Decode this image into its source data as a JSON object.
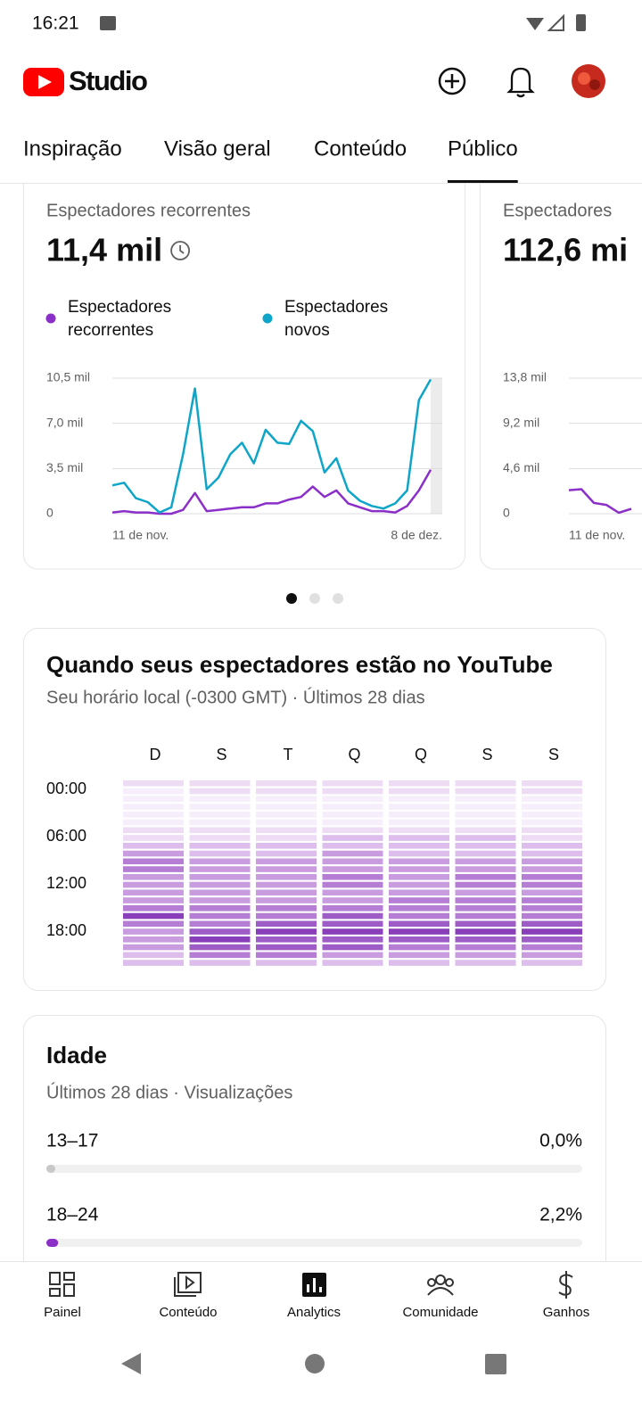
{
  "status_bar": {
    "time": "16:21"
  },
  "header": {
    "app_name": "Studio"
  },
  "tabs": {
    "items": [
      "Inspiração",
      "Visão geral",
      "Conteúdo",
      "Público"
    ],
    "active": 3
  },
  "cards": [
    {
      "title": "Espectadores recorrentes",
      "value": "11,4 mil",
      "chart": {
        "type": "line",
        "categories": [
          "11 de nov.",
          null,
          null,
          null,
          null,
          null,
          null,
          null,
          null,
          null,
          null,
          null,
          null,
          null,
          null,
          null,
          null,
          null,
          null,
          null,
          null,
          null,
          null,
          null,
          null,
          null,
          null,
          "8 de dez."
        ],
        "series": [
          {
            "name": "Espectadores recorrentes",
            "color": "#8b2fc9",
            "values": [
              100,
              200,
              100,
              100,
              0,
              0,
              300,
              1600,
              200,
              300,
              400,
              500,
              500,
              800,
              800,
              1100,
              1300,
              2100,
              1300,
              1800,
              800,
              500,
              200,
              200,
              100,
              600,
              1800,
              3400
            ]
          },
          {
            "name": "Espectadores novos",
            "color": "#0ea5c9",
            "values": [
              2200,
              2400,
              1200,
              900,
              100,
              500,
              4600,
              9700,
              1900,
              2800,
              4600,
              5500,
              3900,
              6500,
              5500,
              5400,
              7200,
              6400,
              3200,
              4300,
              1800,
              1000,
              600,
              400,
              800,
              1800,
              8800,
              10400
            ]
          }
        ],
        "ylim": [
          0,
          10500
        ],
        "yticks": [
          {
            "value": 0,
            "label": "0"
          },
          {
            "value": 3500,
            "label": "3,5 mil"
          },
          {
            "value": 7000,
            "label": "7,0 mil"
          },
          {
            "value": 10500,
            "label": "10,5 mil"
          }
        ],
        "grid": true
      }
    },
    {
      "title": "Espectadores",
      "value": "112,6 mi",
      "chart": {
        "type": "line",
        "categories": [
          "11 de nov.",
          null,
          null,
          null,
          null,
          null
        ],
        "series": [
          {
            "color": "#8b2fc9",
            "values": [
              2400,
              2500,
              1100,
              900,
              100,
              500
            ]
          }
        ],
        "ylim": [
          0,
          13800
        ],
        "yticks": [
          {
            "value": 0,
            "label": "0"
          },
          {
            "value": 4600,
            "label": "4,6 mil"
          },
          {
            "value": 9200,
            "label": "9,2 mil"
          },
          {
            "value": 13800,
            "label": "13,8 mil"
          }
        ],
        "grid": true
      }
    }
  ],
  "pager": {
    "count": 3,
    "active": 0
  },
  "heatmap": {
    "title": "Quando seus espectadores estão no YouTube",
    "subtitle": "Seu horário local (-0300 GMT) · Últimos 28 dias",
    "days": [
      "D",
      "S",
      "T",
      "Q",
      "Q",
      "S",
      "S"
    ],
    "hour_labels": [
      "00:00",
      "06:00",
      "12:00",
      "18:00"
    ],
    "palette": [
      "#f6eefa",
      "#eddcf4",
      "#dcbdeb",
      "#c99ce0",
      "#b57ed4",
      "#9e5cc6",
      "#8a3fba"
    ],
    "levels": [
      [
        1,
        0,
        0,
        0,
        0,
        0,
        1,
        1,
        2,
        3,
        4,
        4,
        3,
        3,
        3,
        3,
        4,
        6,
        4,
        3,
        3,
        3,
        2,
        2
      ],
      [
        1,
        1,
        0,
        0,
        0,
        0,
        1,
        1,
        2,
        2,
        3,
        3,
        3,
        3,
        3,
        3,
        4,
        4,
        4,
        5,
        6,
        5,
        4,
        2
      ],
      [
        1,
        1,
        0,
        0,
        0,
        0,
        1,
        1,
        2,
        2,
        3,
        3,
        3,
        3,
        3,
        3,
        4,
        4,
        5,
        6,
        5,
        5,
        4,
        2
      ],
      [
        1,
        1,
        0,
        0,
        0,
        0,
        1,
        2,
        2,
        3,
        3,
        3,
        4,
        4,
        3,
        3,
        4,
        5,
        5,
        6,
        5,
        5,
        3,
        2
      ],
      [
        1,
        1,
        0,
        0,
        0,
        0,
        1,
        2,
        2,
        2,
        3,
        3,
        3,
        3,
        3,
        4,
        4,
        4,
        5,
        6,
        5,
        4,
        3,
        2
      ],
      [
        1,
        1,
        0,
        0,
        0,
        0,
        1,
        2,
        2,
        2,
        3,
        3,
        4,
        4,
        3,
        4,
        4,
        4,
        5,
        6,
        5,
        4,
        3,
        2
      ],
      [
        1,
        1,
        0,
        0,
        0,
        0,
        1,
        1,
        2,
        2,
        3,
        3,
        4,
        4,
        3,
        4,
        4,
        4,
        5,
        6,
        5,
        4,
        3,
        2
      ]
    ]
  },
  "age": {
    "title": "Idade",
    "subtitle": "Últimos 28 dias · Visualizações",
    "xlim": [
      0,
      100
    ],
    "color": "#8b2fc9",
    "categories": [
      "13–17",
      "18–24"
    ],
    "values": [
      0,
      2.2
    ],
    "value_labels": [
      "0,0%",
      "2,2%"
    ]
  },
  "bottom_nav": {
    "items": [
      "Painel",
      "Conteúdo",
      "Analytics",
      "Comunidade",
      "Ganhos"
    ],
    "active": 2
  }
}
